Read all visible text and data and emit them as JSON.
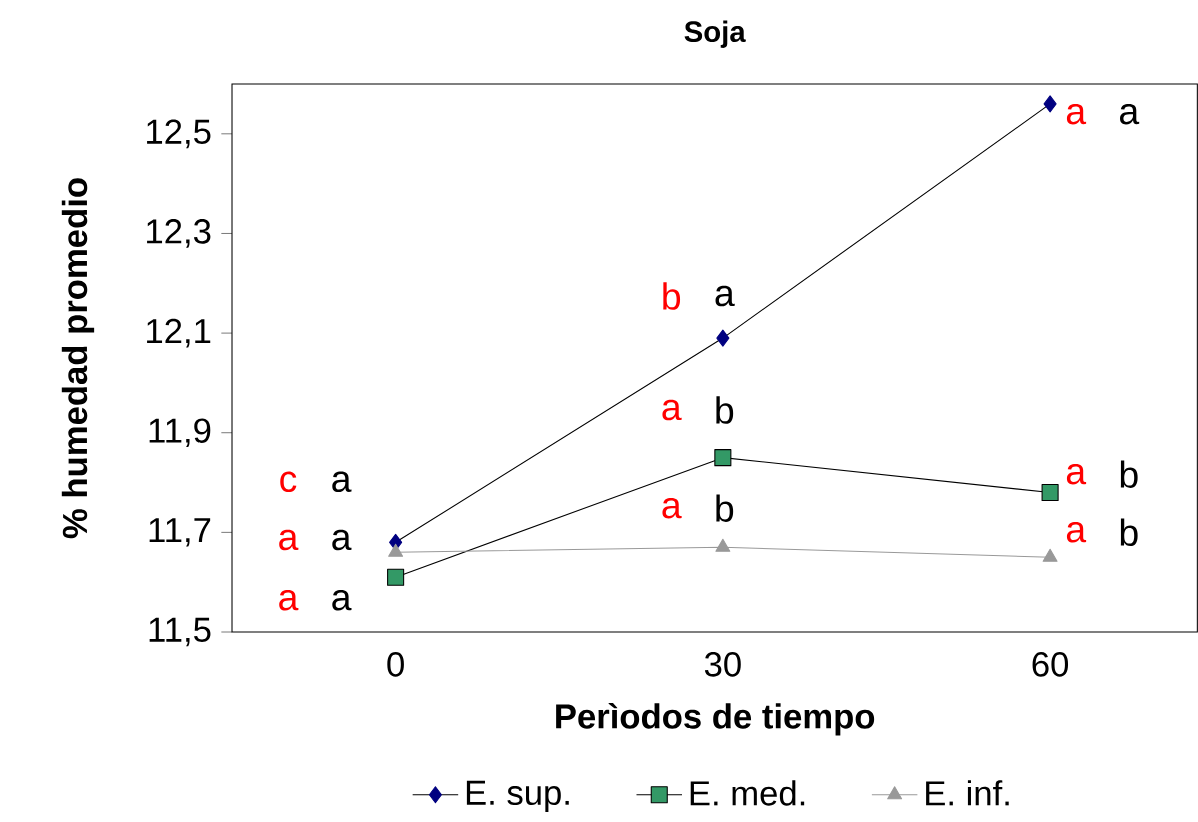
{
  "chart_data": {
    "type": "line",
    "title": "Soja",
    "xlabel": "Perìodos de tiempo",
    "ylabel": "% humedad promedio",
    "categories": [
      "0",
      "30",
      "60"
    ],
    "series": [
      {
        "name": "E. sup.",
        "color": "#000080",
        "marker": "diamond",
        "values": [
          11.68,
          12.09,
          12.56
        ]
      },
      {
        "name": "E. med.",
        "color": "#339966",
        "marker": "square",
        "values": [
          11.61,
          11.85,
          11.78
        ]
      },
      {
        "name": "E. inf.",
        "color": "#999999",
        "marker": "triangle",
        "values": [
          11.66,
          11.67,
          11.65
        ]
      }
    ],
    "ylim": [
      11.5,
      12.6
    ],
    "yticks": [
      {
        "value": 11.5,
        "label": "11,5"
      },
      {
        "value": 11.7,
        "label": "11,7"
      },
      {
        "value": 11.9,
        "label": "11,9"
      },
      {
        "value": 12.1,
        "label": "12,1"
      },
      {
        "value": 12.3,
        "label": "12,3"
      },
      {
        "value": 12.5,
        "label": "12,5"
      }
    ],
    "legend": "bottom",
    "annotations": [
      "c",
      "a",
      "a",
      "a",
      "a",
      "a",
      "b",
      "a",
      "a",
      "b",
      "a",
      "b",
      "a",
      "a",
      "a",
      "b",
      "a",
      "b"
    ]
  }
}
